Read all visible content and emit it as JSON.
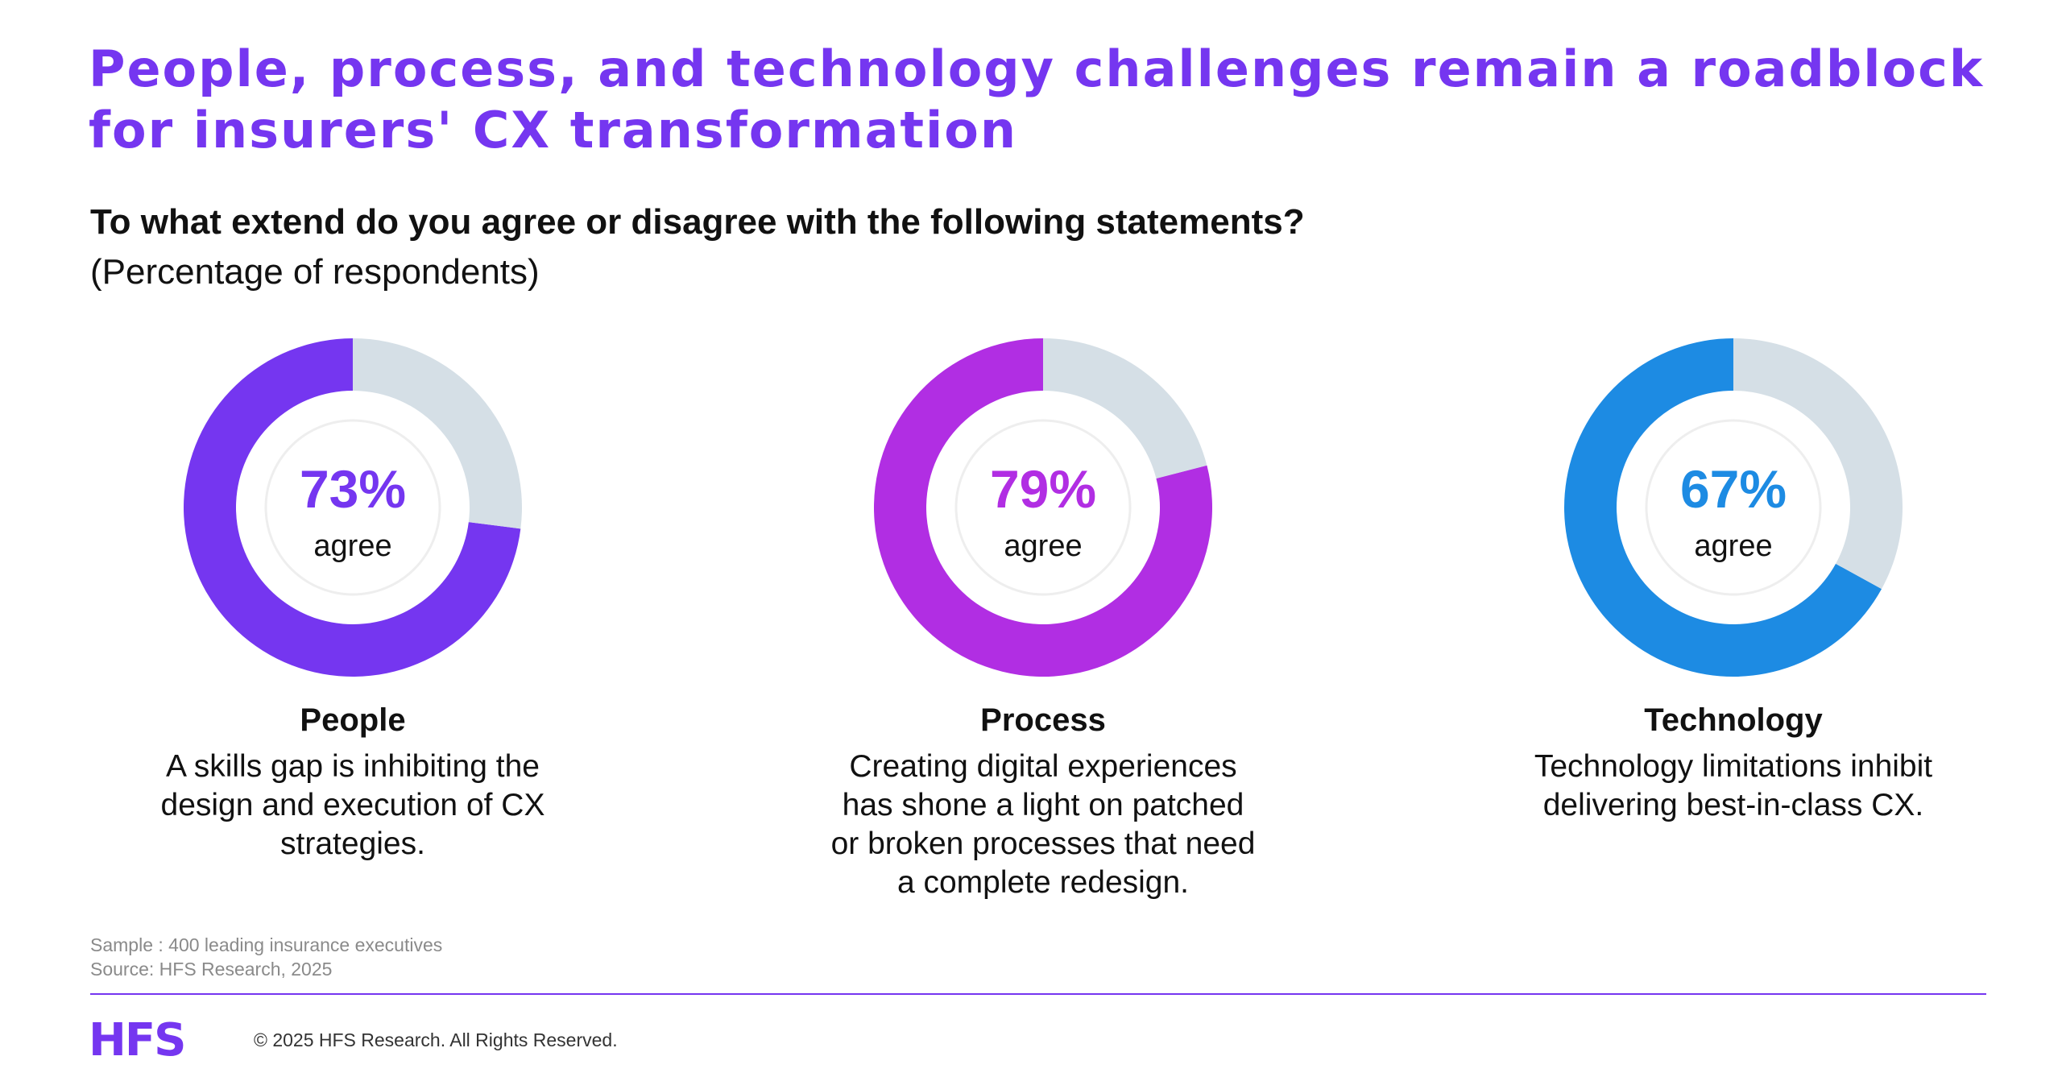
{
  "title": "People, process, and technology challenges remain a roadblock for insurers' CX transformation",
  "question": "To what extend do you agree or disagree with the following statements?",
  "subtitle": "(Percentage of respondents)",
  "chart_data": [
    {
      "type": "pie",
      "category": "People",
      "description": "A skills gap is inhibiting the design and execution of CX strategies.",
      "values": [
        73,
        27
      ],
      "value_label": "73%",
      "center_label": "agree",
      "color": "#7536f0",
      "remainder_color": "#d5dfe6"
    },
    {
      "type": "pie",
      "category": "Process",
      "description": "Creating digital experiences has shone a light on patched or broken processes that need a complete redesign.",
      "values": [
        79,
        21
      ],
      "value_label": "79%",
      "center_label": "agree",
      "color": "#b12ee3",
      "remainder_color": "#d5dfe6"
    },
    {
      "type": "pie",
      "category": "Technology",
      "description": "Technology limitations inhibit delivering best-in-class CX.",
      "values": [
        67,
        33
      ],
      "value_label": "67%",
      "center_label": "agree",
      "color": "#1d8be3",
      "remainder_color": "#d5dfe6"
    }
  ],
  "footer": {
    "sample": "Sample : 400 leading insurance executives",
    "source": "Source: HFS Research, 2025",
    "logo": "HFS",
    "copyright": "© 2025 HFS Research. All Rights Reserved."
  },
  "colors": {
    "accent": "#7536f0"
  }
}
